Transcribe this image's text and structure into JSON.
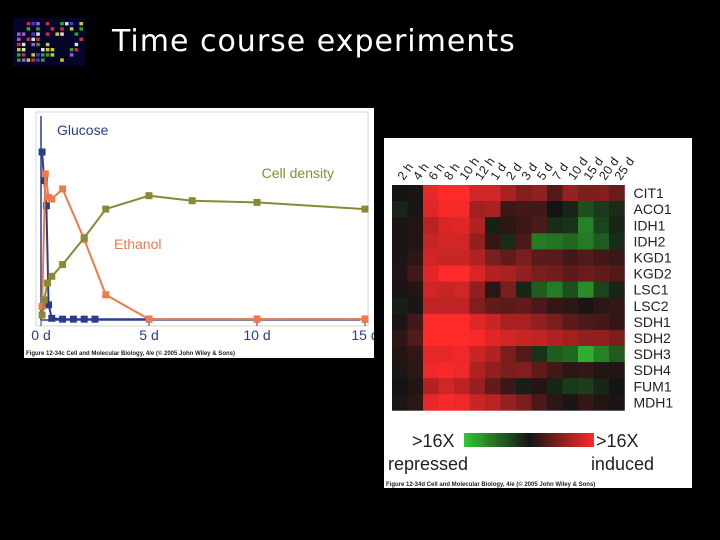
{
  "slide": {
    "title": "Time course experiments"
  },
  "chart_data": [
    {
      "type": "line",
      "series": [
        {
          "name": "Glucose",
          "color": "#2a3d8c",
          "x": [
            0.05,
            0.15,
            0.25,
            0.35,
            0.5,
            1,
            1.5,
            2,
            2.5,
            5,
            10,
            15
          ],
          "y": [
            100,
            83,
            68,
            9,
            1,
            0.5,
            0.5,
            0.5,
            0.5,
            0.5,
            0.5,
            0.5
          ]
        },
        {
          "name": "Ethanol",
          "color": "#ee7a4a",
          "x": [
            0.05,
            0.2,
            0.35,
            0.5,
            1,
            2,
            3,
            5,
            10,
            15
          ],
          "y": [
            8,
            87,
            73,
            72,
            78,
            48,
            15,
            0.5,
            0.5,
            0.5
          ]
        },
        {
          "name": "Cell density",
          "color": "#8a8a36",
          "x": [
            0.05,
            0.15,
            0.3,
            0.5,
            1,
            2,
            3,
            5,
            7,
            10,
            15
          ],
          "y": [
            3,
            12,
            22,
            26,
            33,
            49,
            66,
            74,
            71,
            70,
            66
          ]
        }
      ],
      "xticks": [
        "0 d",
        "5 d",
        "10 d",
        "15 d"
      ],
      "xtick_values": [
        0,
        5,
        10,
        15
      ],
      "xlim": [
        0,
        15
      ],
      "ylim": [
        0,
        100
      ],
      "caption": "Figure 12-34c  Cell and Molecular Biology, 4/e (© 2005 John Wiley & Sons)"
    },
    {
      "type": "heatmap",
      "columns": [
        "2 h",
        "4 h",
        "6 h",
        "8 h",
        "10 h",
        "12 h",
        "1 d",
        "2 d",
        "3 d",
        "5 d",
        "7 d",
        "10 d",
        "15 d",
        "20 d",
        "25 d"
      ],
      "rows": [
        "CIT1",
        "ACO1",
        "IDH1",
        "IDH2",
        "KGD1",
        "KGD2",
        "LSC1",
        "LSC2",
        "SDH1",
        "SDH2",
        "SDH3",
        "SDH4",
        "FUM1",
        "MDH1"
      ],
      "values": [
        [
          0.0,
          0.1,
          2.7,
          3.0,
          3.0,
          2.4,
          2.4,
          1.9,
          1.4,
          1.6,
          0.8,
          1.7,
          1.3,
          1.4,
          1.1
        ],
        [
          -0.3,
          0.1,
          2.6,
          2.9,
          2.9,
          1.8,
          1.9,
          0.5,
          0.6,
          0.6,
          0.0,
          -0.3,
          -1.0,
          -0.6,
          -0.4
        ],
        [
          0.1,
          0.2,
          2.1,
          2.5,
          2.6,
          2.0,
          -0.2,
          0.3,
          0.5,
          0.7,
          -0.4,
          -0.5,
          -1.8,
          -0.8,
          -0.3
        ],
        [
          0.1,
          0.2,
          2.3,
          2.4,
          2.4,
          1.6,
          0.4,
          -0.4,
          0.7,
          -1.7,
          -1.6,
          -1.4,
          -1.7,
          -1.2,
          -0.4
        ],
        [
          0.1,
          0.3,
          2.4,
          2.3,
          2.3,
          2.0,
          1.3,
          1.0,
          1.3,
          0.9,
          0.9,
          0.6,
          0.8,
          0.6,
          0.5
        ],
        [
          0.2,
          0.6,
          2.6,
          3.0,
          3.0,
          2.5,
          2.0,
          1.9,
          1.6,
          1.3,
          1.2,
          0.9,
          1.1,
          1.0,
          0.8
        ],
        [
          0.1,
          0.2,
          2.4,
          2.3,
          2.4,
          1.6,
          0.3,
          1.3,
          -0.3,
          -1.2,
          -1.7,
          -1.0,
          -2.0,
          -0.8,
          -0.3
        ],
        [
          -0.2,
          0.1,
          2.2,
          2.2,
          2.2,
          1.4,
          1.0,
          0.9,
          1.0,
          0.7,
          0.4,
          0.3,
          0.1,
          0.3,
          0.4
        ],
        [
          0.1,
          0.6,
          3.0,
          3.0,
          3.0,
          2.6,
          2.3,
          1.9,
          1.9,
          1.6,
          1.3,
          0.9,
          0.7,
          0.6,
          0.4
        ],
        [
          0.3,
          0.8,
          3.0,
          3.0,
          3.0,
          2.9,
          2.6,
          2.4,
          2.3,
          2.2,
          2.0,
          1.8,
          1.6,
          1.6,
          1.3
        ],
        [
          0.2,
          0.4,
          2.7,
          2.7,
          2.8,
          2.3,
          2.0,
          1.3,
          0.8,
          -0.5,
          -1.2,
          -1.4,
          -2.6,
          -1.8,
          -1.2
        ],
        [
          0.1,
          0.3,
          2.8,
          2.9,
          2.8,
          2.0,
          1.6,
          1.3,
          1.4,
          1.0,
          0.6,
          0.3,
          0.4,
          0.2,
          0.2
        ],
        [
          0.0,
          0.2,
          2.0,
          2.4,
          2.1,
          1.7,
          1.0,
          0.5,
          -0.2,
          0.2,
          -0.3,
          -0.6,
          -0.7,
          -0.3,
          0.0
        ],
        [
          0.1,
          0.3,
          2.7,
          2.9,
          2.8,
          2.3,
          2.1,
          1.7,
          1.3,
          0.7,
          0.3,
          0.1,
          0.4,
          0.2,
          0.1
        ]
      ],
      "vmin": -3,
      "vmax": 3,
      "colors": {
        "repressed": "#32c832",
        "neutral": "#141414",
        "induced": "#ff2a2a"
      },
      "scale": {
        "left_label": ">16X",
        "right_label": ">16X",
        "left_caption": "repressed",
        "right_caption": "induced"
      },
      "caption": "Figure 12-34d  Cell and Molecular Biology, 4/e (© 2005 John Wiley & Sons)"
    }
  ]
}
